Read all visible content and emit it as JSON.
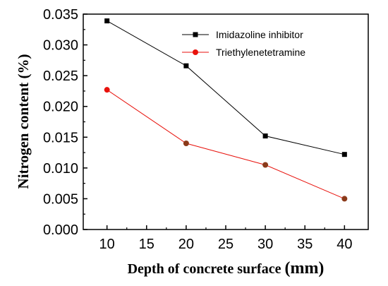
{
  "chart_data": {
    "type": "line",
    "xlabel": {
      "main": "Depth of concrete surface ",
      "unit": "(mm)"
    },
    "ylabel": "Nitrogen content (%)",
    "xlim": [
      7,
      43
    ],
    "ylim": [
      0,
      0.035
    ],
    "xticks": [
      "10",
      "15",
      "20",
      "25",
      "30",
      "35",
      "40"
    ],
    "yticks": [
      "0.000",
      "0.005",
      "0.010",
      "0.015",
      "0.020",
      "0.025",
      "0.030",
      "0.035"
    ],
    "legend_position": "top-right",
    "grid": false,
    "series": [
      {
        "name": "Imidazoline inhibitor",
        "marker": "square",
        "color": "#000000",
        "line_color": "#000000",
        "x": [
          10,
          20,
          30,
          40
        ],
        "values": [
          0.0339,
          0.0266,
          0.0152,
          0.0122
        ]
      },
      {
        "name": "Triethylenetetramine",
        "marker": "circle",
        "color": "#e8120c",
        "line_color": "#e8120c",
        "point_colors": [
          "#e8120c",
          "#8b3a1a",
          "#8b3a1a",
          "#8b3a1a"
        ],
        "x": [
          10,
          20,
          30,
          40
        ],
        "values": [
          0.0227,
          0.014,
          0.0105,
          0.005
        ]
      }
    ]
  }
}
